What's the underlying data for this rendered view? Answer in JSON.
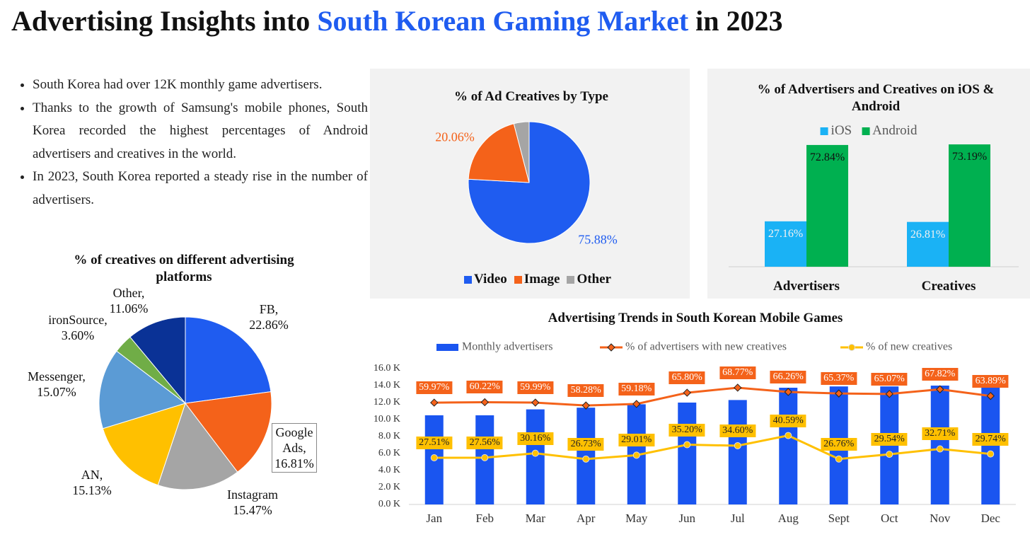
{
  "header": {
    "title_lead": "Advertising Insights into",
    "title_highlight": "South Korean Gaming Market",
    "title_tail": "in 2023"
  },
  "bullets": [
    "South Korea had over 12K monthly game advertisers.",
    "Thanks to the growth of Samsung's mobile phones, South Korea recorded the highest percentages of Android advertisers and creatives in the world.",
    "In 2023, South Korea reported a steady rise in the number of advertisers."
  ],
  "chart_data": [
    {
      "type": "pie",
      "title": "% of creatives on different advertising platforms",
      "categories": [
        "FB,",
        "Google Ads,",
        "Instagram",
        "AN,",
        "Messenger,",
        "ironSource,",
        "Other,"
      ],
      "values": [
        22.86,
        16.81,
        15.47,
        15.13,
        15.07,
        3.6,
        11.06
      ],
      "value_labels": [
        "22.86%",
        "16.81%",
        "15.47%",
        "15.13%",
        "15.07%",
        "3.60%",
        "11.06%"
      ],
      "colors": [
        "#1f5cf0",
        "#f4621a",
        "#a5a5a5",
        "#ffc000",
        "#5b9bd5",
        "#70ad47",
        "#0a3296"
      ]
    },
    {
      "type": "pie",
      "title": "% of Ad Creatives by Type",
      "categories": [
        "Video",
        "Image",
        "Other"
      ],
      "values": [
        75.88,
        20.06,
        4.06
      ],
      "value_labels": [
        "75.88%",
        "20.06%",
        null
      ],
      "colors": [
        "#1f5cf0",
        "#f4621a",
        "#a5a5a5"
      ],
      "legend": "bottom"
    },
    {
      "type": "bar",
      "title": "% of Advertisers and Creatives on iOS & Android",
      "categories": [
        "Advertisers",
        "Creatives"
      ],
      "series": [
        {
          "name": "iOS",
          "color": "#1ab2f5",
          "values": [
            27.16,
            26.81
          ],
          "value_labels": [
            "27.16%",
            "26.81%"
          ]
        },
        {
          "name": "Android",
          "color": "#00b050",
          "values": [
            72.84,
            73.19
          ],
          "value_labels": [
            "72.84%",
            "73.19%"
          ]
        }
      ],
      "ylim": [
        0,
        80
      ],
      "legend": "top"
    },
    {
      "type": "combo",
      "title": "Advertising Trends in South Korean Mobile Games",
      "categories": [
        "Jan",
        "Feb",
        "Mar",
        "Apr",
        "May",
        "Jun",
        "Jul",
        "Aug",
        "Sept",
        "Oct",
        "Nov",
        "Dec"
      ],
      "series": [
        {
          "name": "Monthly advertisers",
          "color": "#1a55f0",
          "type": "bar",
          "values": [
            10.5,
            10.5,
            11.2,
            11.4,
            11.8,
            12.0,
            12.3,
            13.75,
            13.9,
            13.9,
            14.0,
            13.9
          ]
        },
        {
          "name": "% of advertisers with new creatives",
          "color": "#f4621a",
          "type": "line",
          "axis": "y2",
          "marker": "diamond",
          "values": [
            59.97,
            60.22,
            59.99,
            58.28,
            59.18,
            65.8,
            68.77,
            66.26,
            65.37,
            65.07,
            67.82,
            63.89
          ],
          "value_labels": [
            "59.97%",
            "60.22%",
            "59.99%",
            "58.28%",
            "59.18%",
            "65.80%",
            "68.77%",
            "66.26%",
            "65.37%",
            "65.07%",
            "67.82%",
            "63.89%"
          ]
        },
        {
          "name": "% of new creatives",
          "color": "#ffc000",
          "type": "line",
          "axis": "y2",
          "marker": "circle",
          "values": [
            27.51,
            27.56,
            30.16,
            26.73,
            29.01,
            35.2,
            34.6,
            40.59,
            26.76,
            29.54,
            32.71,
            29.74
          ],
          "value_labels": [
            "27.51%",
            "27.56%",
            "30.16%",
            "26.73%",
            "29.01%",
            "35.20%",
            "34.60%",
            "40.59%",
            "26.76%",
            "29.54%",
            "32.71%",
            "29.74%"
          ]
        }
      ],
      "ylim": [
        0,
        16
      ],
      "yticks": [
        {
          "value": 0,
          "label": "0.0 K"
        },
        {
          "value": 2,
          "label": "2.0 K"
        },
        {
          "value": 4,
          "label": "4.0 K"
        },
        {
          "value": 6,
          "label": "6.0 K"
        },
        {
          "value": 8,
          "label": "8.0 K"
        },
        {
          "value": 10,
          "label": "10.0 K"
        },
        {
          "value": 12,
          "label": "12.0 K"
        },
        {
          "value": 14,
          "label": "14.0 K"
        },
        {
          "value": 16,
          "label": "16.0 K"
        }
      ],
      "y2lim": [
        0,
        80
      ],
      "legend": "top"
    }
  ]
}
